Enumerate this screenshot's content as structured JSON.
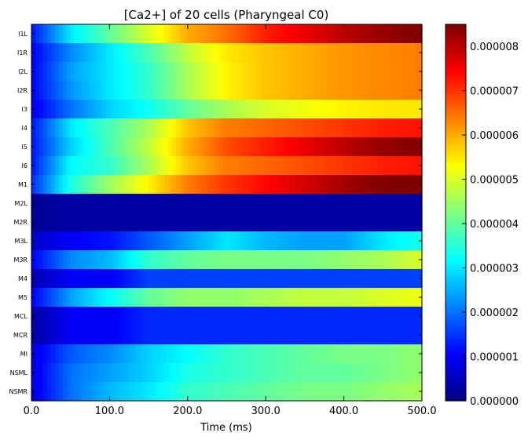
{
  "chart_data": {
    "type": "heatmap",
    "title": "[Ca2+] of 20 cells (Pharyngeal C0)",
    "xlabel": "Time (ms)",
    "ylabel": "",
    "xlim": [
      0,
      500
    ],
    "x_ticks": [
      "0.0",
      "100.0",
      "200.0",
      "300.0",
      "400.0",
      "500.0"
    ],
    "x_time_points": [
      0,
      50,
      100,
      150,
      200,
      250,
      300,
      350,
      400,
      450,
      500
    ],
    "rows": [
      "I1L",
      "I1R",
      "I2L",
      "I2R",
      "I3",
      "I4",
      "I5",
      "I6",
      "M1",
      "M2L",
      "M2R",
      "M3L",
      "M3R",
      "M4",
      "M5",
      "MCL",
      "MCR",
      "MI",
      "NSML",
      "NSMR"
    ],
    "values": [
      [
        1.2e-06,
        3e-06,
        4e-06,
        5e-06,
        6e-06,
        6.5e-06,
        7.2e-06,
        7.6e-06,
        8e-06,
        8.3e-06,
        8.5e-06
      ],
      [
        1e-06,
        2.2e-06,
        3e-06,
        3.8e-06,
        4.8e-06,
        5.5e-06,
        5.8e-06,
        6e-06,
        6.2e-06,
        6.3e-06,
        6.4e-06
      ],
      [
        1e-06,
        2.4e-06,
        3e-06,
        3.6e-06,
        4.6e-06,
        5.4e-06,
        5.8e-06,
        6e-06,
        6.2e-06,
        6.3e-06,
        6.4e-06
      ],
      [
        1e-06,
        2.3e-06,
        3e-06,
        3.6e-06,
        4.6e-06,
        5.4e-06,
        5.8e-06,
        6e-06,
        6.2e-06,
        6.3e-06,
        6.4e-06
      ],
      [
        9e-07,
        2e-06,
        2.8e-06,
        3.3e-06,
        4e-06,
        4.6e-06,
        5e-06,
        5.2e-06,
        5.4e-06,
        5.5e-06,
        5.5e-06
      ],
      [
        1.2e-06,
        3e-06,
        3.8e-06,
        4.6e-06,
        5.8e-06,
        6.4e-06,
        6.6e-06,
        6.8e-06,
        7e-06,
        7.2e-06,
        7.3e-06
      ],
      [
        1.2e-06,
        2.8e-06,
        3.8e-06,
        4.8e-06,
        6e-06,
        6.8e-06,
        7.2e-06,
        7.6e-06,
        8e-06,
        8.3e-06,
        8.5e-06
      ],
      [
        1.2e-06,
        3.2e-06,
        3.6e-06,
        4.6e-06,
        5.8e-06,
        6.4e-06,
        6.6e-06,
        6.8e-06,
        7e-06,
        7.2e-06,
        7.3e-06
      ],
      [
        1.4e-06,
        3.4e-06,
        4.5e-06,
        5.4e-06,
        6.4e-06,
        7e-06,
        7.4e-06,
        7.8e-06,
        8.2e-06,
        8.5e-06,
        8.5e-06
      ],
      [
        2e-07,
        3e-07,
        3e-07,
        3e-07,
        3e-07,
        3e-07,
        3e-07,
        3e-07,
        3e-07,
        3e-07,
        3e-07
      ],
      [
        2e-07,
        3e-07,
        3e-07,
        3e-07,
        3e-07,
        3e-07,
        3e-07,
        3e-07,
        3e-07,
        3e-07,
        3e-07
      ],
      [
        6e-07,
        1e-06,
        1.2e-06,
        1.8e-06,
        2.4e-06,
        3e-06,
        2.6e-06,
        2.4e-06,
        2.4e-06,
        3e-06,
        3.4e-06
      ],
      [
        1e-06,
        2.2e-06,
        2.6e-06,
        3.6e-06,
        4e-06,
        4.2e-06,
        4.2e-06,
        4.2e-06,
        4.4e-06,
        4.6e-06,
        5e-06
      ],
      [
        4e-07,
        1e-06,
        1e-06,
        1.6e-06,
        1.6e-06,
        1.6e-06,
        1.6e-06,
        1.6e-06,
        1.6e-06,
        1.6e-06,
        1.6e-06
      ],
      [
        1e-06,
        2.4e-06,
        3.2e-06,
        4e-06,
        4.4e-06,
        4.4e-06,
        4.6e-06,
        4.8e-06,
        4.8e-06,
        5e-06,
        5.2e-06
      ],
      [
        3e-07,
        1e-06,
        1e-06,
        1.4e-06,
        1.4e-06,
        1.4e-06,
        1.4e-06,
        1.4e-06,
        1.4e-06,
        1.4e-06,
        1.4e-06
      ],
      [
        3e-07,
        1e-06,
        1e-06,
        1.4e-06,
        1.4e-06,
        1.4e-06,
        1.4e-06,
        1.4e-06,
        1.4e-06,
        1.4e-06,
        1.4e-06
      ],
      [
        8e-07,
        1.8e-06,
        2.2e-06,
        2.8e-06,
        3.2e-06,
        3.6e-06,
        3.8e-06,
        4e-06,
        4.2e-06,
        4.2e-06,
        4.4e-06
      ],
      [
        8e-07,
        2e-06,
        2.4e-06,
        2.8e-06,
        3.4e-06,
        3.6e-06,
        3.8e-06,
        4e-06,
        4e-06,
        4.2e-06,
        4.4e-06
      ],
      [
        8e-07,
        2e-06,
        2.6e-06,
        3e-06,
        3.6e-06,
        3.8e-06,
        4e-06,
        4.2e-06,
        4.2e-06,
        4.4e-06,
        4.6e-06
      ]
    ],
    "colorbar": {
      "min": 0,
      "max": 8.5e-06,
      "colormap": "jet",
      "ticks": [
        "0.000000",
        "0.000001",
        "0.000002",
        "0.000003",
        "0.000004",
        "0.000005",
        "0.000006",
        "0.000007",
        "0.000008"
      ],
      "tick_values": [
        0,
        1e-06,
        2e-06,
        3e-06,
        4e-06,
        5e-06,
        6e-06,
        7e-06,
        8e-06
      ]
    },
    "grid": false,
    "legend": "none"
  }
}
